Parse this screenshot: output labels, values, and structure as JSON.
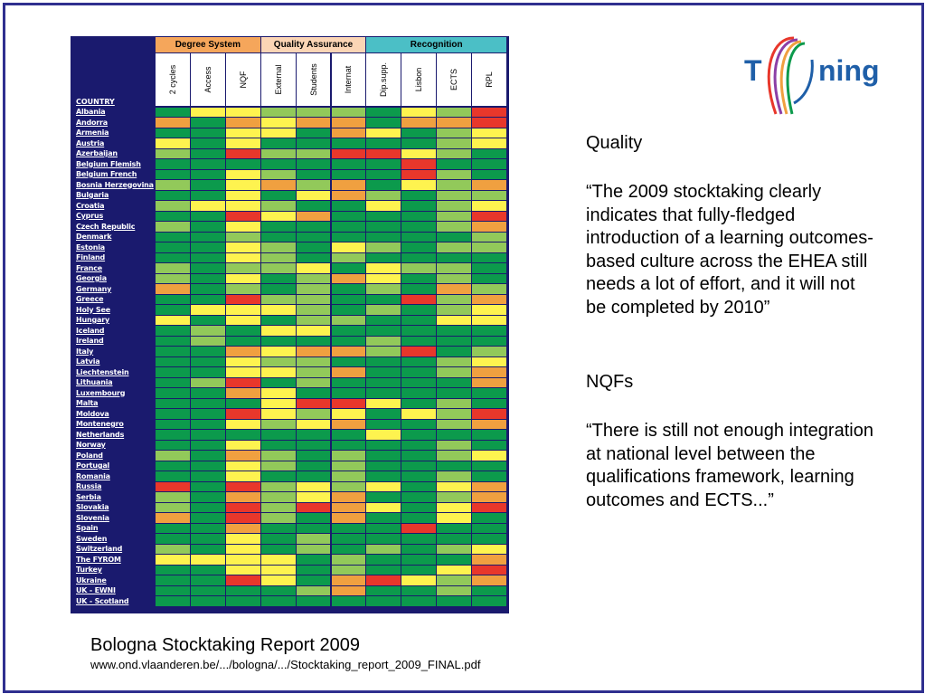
{
  "table": {
    "groups": [
      {
        "label": "Degree System",
        "color": "#f5a65b"
      },
      {
        "label": "Quality  Assurance",
        "color": "#fbd5b5"
      },
      {
        "label": "Recognition",
        "color": "#4bbfc6"
      }
    ],
    "columns": [
      "2 cycles",
      "Access",
      "NQF",
      "External",
      "Students",
      "Internat",
      "Dip.supp.",
      "Lisbon",
      "ECTS",
      "RPL"
    ],
    "country_header": "COUNTRY",
    "colors": {
      "dg": "#0c9a4c",
      "lg": "#92c95a",
      "y": "#fef34f",
      "o": "#f0a040",
      "r": "#e8372b"
    },
    "rows": [
      {
        "country": "Albania",
        "cells": [
          "dg",
          "y",
          "y",
          "lg",
          "lg",
          "lg",
          "dg",
          "y",
          "lg",
          "r"
        ]
      },
      {
        "country": "Andorra",
        "cells": [
          "o",
          "dg",
          "o",
          "y",
          "o",
          "o",
          "dg",
          "o",
          "o",
          "r"
        ]
      },
      {
        "country": "Armenia",
        "cells": [
          "dg",
          "dg",
          "y",
          "y",
          "dg",
          "o",
          "y",
          "dg",
          "lg",
          "y"
        ]
      },
      {
        "country": "Austria",
        "cells": [
          "y",
          "dg",
          "y",
          "dg",
          "dg",
          "dg",
          "dg",
          "dg",
          "lg",
          "y"
        ]
      },
      {
        "country": "Azerbaijan",
        "cells": [
          "lg",
          "dg",
          "r",
          "lg",
          "lg",
          "r",
          "r",
          "y",
          "lg",
          "dg"
        ]
      },
      {
        "country": "Belgium Flemish",
        "cells": [
          "dg",
          "dg",
          "dg",
          "dg",
          "dg",
          "dg",
          "dg",
          "r",
          "dg",
          "dg"
        ]
      },
      {
        "country": "Belgium French",
        "cells": [
          "dg",
          "dg",
          "y",
          "lg",
          "dg",
          "dg",
          "dg",
          "r",
          "lg",
          "dg"
        ]
      },
      {
        "country": "Bosnia Herzegovina",
        "cells": [
          "lg",
          "dg",
          "y",
          "o",
          "lg",
          "o",
          "dg",
          "y",
          "lg",
          "o"
        ]
      },
      {
        "country": "Bulgaria",
        "cells": [
          "dg",
          "dg",
          "y",
          "dg",
          "y",
          "o",
          "lg",
          "dg",
          "lg",
          "lg"
        ]
      },
      {
        "country": "Croatia",
        "cells": [
          "lg",
          "y",
          "y",
          "lg",
          "dg",
          "dg",
          "y",
          "dg",
          "lg",
          "y"
        ]
      },
      {
        "country": "Cyprus",
        "cells": [
          "dg",
          "dg",
          "r",
          "y",
          "o",
          "dg",
          "dg",
          "dg",
          "lg",
          "r"
        ]
      },
      {
        "country": "Czech Republic",
        "cells": [
          "lg",
          "dg",
          "y",
          "dg",
          "dg",
          "dg",
          "dg",
          "dg",
          "lg",
          "o"
        ]
      },
      {
        "country": "Denmark",
        "cells": [
          "dg",
          "dg",
          "lg",
          "dg",
          "dg",
          "dg",
          "dg",
          "dg",
          "dg",
          "lg"
        ]
      },
      {
        "country": "Estonia",
        "cells": [
          "dg",
          "dg",
          "y",
          "lg",
          "dg",
          "y",
          "lg",
          "dg",
          "lg",
          "lg"
        ]
      },
      {
        "country": "Finland",
        "cells": [
          "dg",
          "dg",
          "y",
          "lg",
          "dg",
          "lg",
          "dg",
          "dg",
          "dg",
          "dg"
        ]
      },
      {
        "country": "France",
        "cells": [
          "lg",
          "dg",
          "lg",
          "lg",
          "y",
          "dg",
          "y",
          "lg",
          "lg",
          "dg"
        ]
      },
      {
        "country": "Georgia",
        "cells": [
          "lg",
          "dg",
          "y",
          "dg",
          "lg",
          "o",
          "y",
          "dg",
          "lg",
          "dg"
        ]
      },
      {
        "country": "Germany",
        "cells": [
          "o",
          "dg",
          "lg",
          "dg",
          "lg",
          "dg",
          "lg",
          "dg",
          "o",
          "lg"
        ]
      },
      {
        "country": "Greece",
        "cells": [
          "dg",
          "dg",
          "r",
          "lg",
          "lg",
          "dg",
          "dg",
          "r",
          "lg",
          "o"
        ]
      },
      {
        "country": "Holy See",
        "cells": [
          "dg",
          "y",
          "y",
          "y",
          "lg",
          "dg",
          "lg",
          "dg",
          "lg",
          "y"
        ]
      },
      {
        "country": "Hungary",
        "cells": [
          "y",
          "dg",
          "y",
          "dg",
          "lg",
          "lg",
          "dg",
          "dg",
          "y",
          "y"
        ]
      },
      {
        "country": "Iceland",
        "cells": [
          "dg",
          "lg",
          "dg",
          "y",
          "y",
          "dg",
          "dg",
          "dg",
          "dg",
          "dg"
        ]
      },
      {
        "country": "Ireland",
        "cells": [
          "dg",
          "lg",
          "dg",
          "dg",
          "dg",
          "dg",
          "lg",
          "dg",
          "dg",
          "dg"
        ]
      },
      {
        "country": "Italy",
        "cells": [
          "dg",
          "dg",
          "o",
          "y",
          "o",
          "o",
          "lg",
          "r",
          "dg",
          "lg"
        ]
      },
      {
        "country": "Latvia",
        "cells": [
          "dg",
          "dg",
          "y",
          "lg",
          "lg",
          "dg",
          "dg",
          "dg",
          "lg",
          "y"
        ]
      },
      {
        "country": "Liechtenstein",
        "cells": [
          "dg",
          "dg",
          "y",
          "y",
          "lg",
          "o",
          "dg",
          "dg",
          "lg",
          "o"
        ]
      },
      {
        "country": "Lithuania",
        "cells": [
          "dg",
          "lg",
          "r",
          "dg",
          "lg",
          "dg",
          "dg",
          "dg",
          "dg",
          "o"
        ]
      },
      {
        "country": "Luxembourg",
        "cells": [
          "dg",
          "dg",
          "o",
          "y",
          "dg",
          "dg",
          "dg",
          "dg",
          "dg",
          "dg"
        ]
      },
      {
        "country": "Malta",
        "cells": [
          "dg",
          "dg",
          "dg",
          "y",
          "r",
          "r",
          "y",
          "dg",
          "lg",
          "dg"
        ]
      },
      {
        "country": "Moldova",
        "cells": [
          "dg",
          "dg",
          "r",
          "y",
          "lg",
          "y",
          "dg",
          "y",
          "lg",
          "r"
        ]
      },
      {
        "country": "Montenegro",
        "cells": [
          "dg",
          "dg",
          "y",
          "lg",
          "y",
          "o",
          "dg",
          "dg",
          "lg",
          "o"
        ]
      },
      {
        "country": "Netherlands",
        "cells": [
          "dg",
          "dg",
          "dg",
          "dg",
          "dg",
          "dg",
          "y",
          "dg",
          "dg",
          "dg"
        ]
      },
      {
        "country": "Norway",
        "cells": [
          "dg",
          "dg",
          "y",
          "dg",
          "dg",
          "dg",
          "dg",
          "dg",
          "lg",
          "dg"
        ]
      },
      {
        "country": "Poland",
        "cells": [
          "lg",
          "dg",
          "o",
          "lg",
          "dg",
          "lg",
          "dg",
          "dg",
          "lg",
          "y"
        ]
      },
      {
        "country": "Portugal",
        "cells": [
          "dg",
          "dg",
          "y",
          "lg",
          "dg",
          "lg",
          "dg",
          "dg",
          "dg",
          "dg"
        ]
      },
      {
        "country": "Romania",
        "cells": [
          "dg",
          "dg",
          "y",
          "dg",
          "dg",
          "lg",
          "dg",
          "dg",
          "lg",
          "dg"
        ]
      },
      {
        "country": "Russia",
        "cells": [
          "r",
          "dg",
          "r",
          "lg",
          "y",
          "lg",
          "y",
          "dg",
          "y",
          "o"
        ]
      },
      {
        "country": "Serbia",
        "cells": [
          "lg",
          "dg",
          "o",
          "lg",
          "y",
          "o",
          "dg",
          "dg",
          "lg",
          "o"
        ]
      },
      {
        "country": "Slovakia",
        "cells": [
          "lg",
          "dg",
          "r",
          "lg",
          "r",
          "o",
          "y",
          "dg",
          "y",
          "r"
        ]
      },
      {
        "country": "Slovenia",
        "cells": [
          "o",
          "dg",
          "r",
          "lg",
          "dg",
          "o",
          "dg",
          "dg",
          "y",
          "dg"
        ]
      },
      {
        "country": "Spain",
        "cells": [
          "dg",
          "dg",
          "o",
          "dg",
          "dg",
          "dg",
          "dg",
          "r",
          "dg",
          "dg"
        ]
      },
      {
        "country": "Sweden",
        "cells": [
          "dg",
          "dg",
          "y",
          "dg",
          "lg",
          "dg",
          "dg",
          "dg",
          "dg",
          "dg"
        ]
      },
      {
        "country": "Switzerland",
        "cells": [
          "lg",
          "dg",
          "y",
          "dg",
          "lg",
          "dg",
          "lg",
          "dg",
          "lg",
          "y"
        ]
      },
      {
        "country": "The FYROM",
        "cells": [
          "y",
          "y",
          "y",
          "y",
          "dg",
          "lg",
          "dg",
          "dg",
          "dg",
          "o"
        ]
      },
      {
        "country": "Turkey",
        "cells": [
          "dg",
          "dg",
          "y",
          "y",
          "dg",
          "lg",
          "dg",
          "dg",
          "y",
          "r"
        ]
      },
      {
        "country": "Ukraine",
        "cells": [
          "dg",
          "dg",
          "r",
          "y",
          "dg",
          "o",
          "r",
          "y",
          "lg",
          "o"
        ]
      },
      {
        "country": "UK - EWNI",
        "cells": [
          "dg",
          "dg",
          "dg",
          "dg",
          "lg",
          "o",
          "dg",
          "dg",
          "lg",
          "dg"
        ]
      },
      {
        "country": "UK - Scotland",
        "cells": [
          "dg",
          "dg",
          "dg",
          "dg",
          "dg",
          "dg",
          "dg",
          "dg",
          "dg",
          "dg"
        ]
      }
    ]
  },
  "logo": {
    "left": "T",
    "right": "ning"
  },
  "quality_heading": "Quality",
  "quality_quote": "“The 2009 stocktaking clearly indicates that fully-fledged introduction of a learning outcomes-based culture across the EHEA still needs a lot of effort, and it will not be completed by 2010”",
  "nqf_heading": "NQFs",
  "nqf_quote": "“There is still not enough integration at national level between the qualifications framework, learning outcomes and ECTS...”",
  "source_title": "Bologna Stocktaking Report 2009",
  "source_url": "www.ond.vlaanderen.be/.../bologna/.../Stocktaking_report_2009_FINAL.pdf"
}
